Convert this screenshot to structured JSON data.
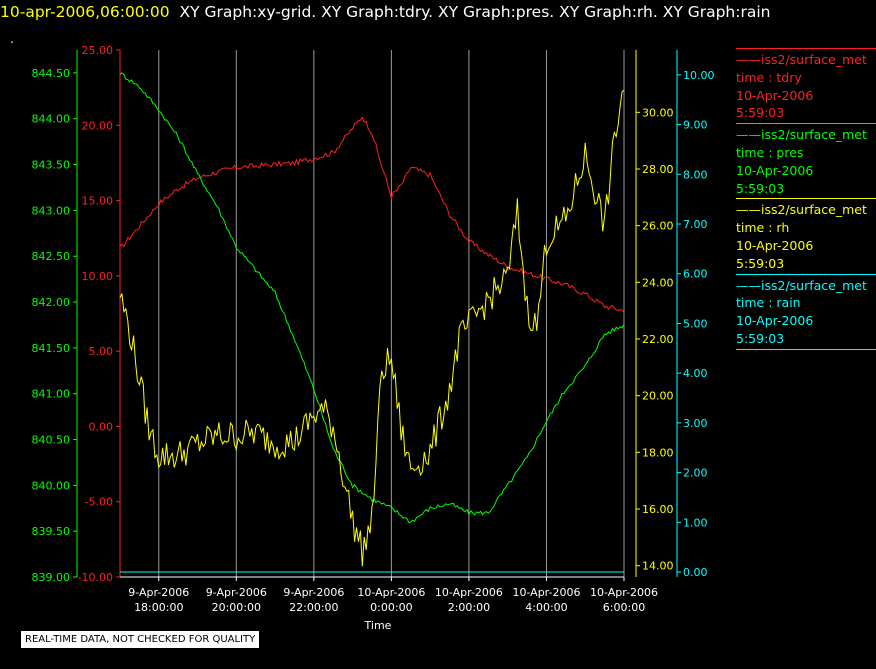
{
  "header": {
    "timestamp": "10-apr-2006,06:00:00",
    "graphs": "XY Graph:xy-grid.  XY Graph:tdry.  XY Graph:pres.  XY Graph:rh.  XY Graph:rain",
    "dot": "."
  },
  "disclaimer": "REAL-TIME DATA, NOT CHECKED FOR QUALITY",
  "legend": [
    {
      "source": "——iss2/surface_met",
      "var": "time : tdry",
      "date": "10-Apr-2006",
      "time": "5:59:03",
      "color": "#ff2020"
    },
    {
      "source": "——iss2/surface_met",
      "var": "time : pres",
      "date": "10-Apr-2006",
      "time": "5:59:03",
      "color": "#00ff00"
    },
    {
      "source": "——iss2/surface_met",
      "var": "time : rh",
      "date": "10-Apr-2006",
      "time": "5:59:03",
      "color": "#ffff00"
    },
    {
      "source": "——iss2/surface_met",
      "var": "time : rain",
      "date": "10-Apr-2006",
      "time": "5:59:03",
      "color": "#00ffff"
    }
  ],
  "chart_data": {
    "type": "line",
    "xlabel": "Time",
    "xlim": [
      "9-Apr-2006 17:00:00",
      "10-Apr-2006 06:00:00"
    ],
    "x_ticks": [
      {
        "date": "9-Apr-2006",
        "time": "18:00:00"
      },
      {
        "date": "9-Apr-2006",
        "time": "20:00:00"
      },
      {
        "date": "9-Apr-2006",
        "time": "22:00:00"
      },
      {
        "date": "10-Apr-2006",
        "time": "0:00:00"
      },
      {
        "date": "10-Apr-2006",
        "time": "2:00:00"
      },
      {
        "date": "10-Apr-2006",
        "time": "4:00:00"
      },
      {
        "date": "10-Apr-2006",
        "time": "6:00:00"
      }
    ],
    "grid": true,
    "axes": [
      {
        "id": "tdry",
        "color": "#ff2020",
        "ylim": [
          -10,
          25
        ],
        "ticks": [
          "-10.00",
          "-5.00",
          "0.00",
          "5.00",
          "10.00",
          "15.00",
          "20.00",
          "25.00"
        ]
      },
      {
        "id": "pres",
        "color": "#00ff00",
        "ylim": [
          839,
          844.75
        ],
        "ticks": [
          "839.00",
          "839.50",
          "840.00",
          "840.50",
          "841.00",
          "841.50",
          "842.00",
          "842.50",
          "843.00",
          "843.50",
          "844.00",
          "844.50"
        ]
      },
      {
        "id": "rh",
        "color": "#ffff00",
        "ylim": [
          13.6,
          32.2
        ],
        "ticks": [
          "14.00",
          "16.00",
          "18.00",
          "20.00",
          "22.00",
          "24.00",
          "26.00",
          "28.00",
          "30.00"
        ]
      },
      {
        "id": "rain",
        "color": "#00ffff",
        "ylim": [
          -0.1,
          10.5
        ],
        "ticks": [
          "0.00",
          "1.00",
          "2.00",
          "3.00",
          "4.00",
          "5.00",
          "6.00",
          "7.00",
          "8.00",
          "9.00",
          "10.00"
        ]
      }
    ],
    "series": [
      {
        "axis": "tdry",
        "color": "#ff2020",
        "noise": 0.18,
        "x": [
          "9-Apr-2006 17:00",
          "9-Apr-2006 17:30",
          "9-Apr-2006 18:00",
          "9-Apr-2006 18:30",
          "9-Apr-2006 19:00",
          "9-Apr-2006 19:30",
          "9-Apr-2006 20:00",
          "9-Apr-2006 20:30",
          "9-Apr-2006 21:00",
          "9-Apr-2006 21:30",
          "9-Apr-2006 22:00",
          "9-Apr-2006 22:30",
          "9-Apr-2006 23:00",
          "9-Apr-2006 23:15",
          "9-Apr-2006 23:30",
          "9-Apr-2006 23:45",
          "10-Apr-2006 00:00",
          "10-Apr-2006 00:15",
          "10-Apr-2006 00:30",
          "10-Apr-2006 01:00",
          "10-Apr-2006 01:30",
          "10-Apr-2006 02:00",
          "10-Apr-2006 02:30",
          "10-Apr-2006 03:00",
          "10-Apr-2006 03:30",
          "10-Apr-2006 04:00",
          "10-Apr-2006 04:30",
          "10-Apr-2006 05:00",
          "10-Apr-2006 05:30",
          "10-Apr-2006 06:00"
        ],
        "y": [
          11.8,
          13.3,
          14.8,
          15.8,
          16.5,
          16.9,
          17.2,
          17.3,
          17.4,
          17.5,
          17.8,
          18.2,
          19.8,
          20.6,
          19.5,
          17.3,
          15.3,
          16.0,
          17.2,
          16.7,
          14.1,
          12.3,
          11.4,
          10.6,
          10.2,
          9.8,
          9.4,
          8.8,
          8.0,
          7.7
        ]
      },
      {
        "axis": "pres",
        "color": "#00ff00",
        "noise": 0.025,
        "x": [
          "9-Apr-2006 17:00",
          "9-Apr-2006 17:30",
          "9-Apr-2006 18:00",
          "9-Apr-2006 18:30",
          "9-Apr-2006 19:00",
          "9-Apr-2006 19:30",
          "9-Apr-2006 20:00",
          "9-Apr-2006 20:30",
          "9-Apr-2006 21:00",
          "9-Apr-2006 21:30",
          "9-Apr-2006 22:00",
          "9-Apr-2006 22:30",
          "9-Apr-2006 23:00",
          "9-Apr-2006 23:30",
          "10-Apr-2006 00:00",
          "10-Apr-2006 00:30",
          "10-Apr-2006 01:00",
          "10-Apr-2006 01:30",
          "10-Apr-2006 02:00",
          "10-Apr-2006 02:30",
          "10-Apr-2006 03:00",
          "10-Apr-2006 03:30",
          "10-Apr-2006 04:00",
          "10-Apr-2006 04:30",
          "10-Apr-2006 05:00",
          "10-Apr-2006 05:30",
          "10-Apr-2006 06:00"
        ],
        "y": [
          844.5,
          844.35,
          844.1,
          843.8,
          843.4,
          843.05,
          842.6,
          842.35,
          842.1,
          841.6,
          841.05,
          840.4,
          840.0,
          839.85,
          839.75,
          839.6,
          839.75,
          839.8,
          839.7,
          839.7,
          840.0,
          840.3,
          840.7,
          841.05,
          841.3,
          841.65,
          841.75
        ]
      },
      {
        "axis": "rh",
        "color": "#ffff00",
        "noise": 0.55,
        "x": [
          "9-Apr-2006 17:00",
          "9-Apr-2006 17:15",
          "9-Apr-2006 17:30",
          "9-Apr-2006 17:45",
          "9-Apr-2006 18:00",
          "9-Apr-2006 18:30",
          "9-Apr-2006 19:00",
          "9-Apr-2006 19:30",
          "9-Apr-2006 20:00",
          "9-Apr-2006 20:30",
          "9-Apr-2006 21:00",
          "9-Apr-2006 21:30",
          "9-Apr-2006 22:00",
          "9-Apr-2006 22:15",
          "9-Apr-2006 22:30",
          "9-Apr-2006 23:00",
          "9-Apr-2006 23:15",
          "9-Apr-2006 23:30",
          "9-Apr-2006 23:45",
          "10-Apr-2006 00:00",
          "10-Apr-2006 00:15",
          "10-Apr-2006 00:30",
          "10-Apr-2006 01:00",
          "10-Apr-2006 01:30",
          "10-Apr-2006 01:45",
          "10-Apr-2006 02:00",
          "10-Apr-2006 02:30",
          "10-Apr-2006 03:00",
          "10-Apr-2006 03:15",
          "10-Apr-2006 03:30",
          "10-Apr-2006 03:45",
          "10-Apr-2006 04:00",
          "10-Apr-2006 04:30",
          "10-Apr-2006 05:00",
          "10-Apr-2006 05:30",
          "10-Apr-2006 05:45",
          "10-Apr-2006 06:00"
        ],
        "y": [
          23.6,
          22.3,
          20.6,
          18.8,
          17.9,
          17.9,
          18.3,
          18.6,
          18.6,
          18.7,
          18.3,
          18.4,
          19.3,
          19.5,
          18.9,
          15.6,
          14.5,
          15.6,
          20.9,
          21.3,
          18.8,
          17.4,
          18.0,
          20.2,
          22.0,
          22.5,
          23.4,
          24.2,
          26.5,
          23.1,
          22.4,
          25.5,
          26.2,
          28.5,
          26.0,
          29.0,
          31.0
        ]
      },
      {
        "axis": "rain",
        "color": "#00ffff",
        "noise": 0,
        "x": [
          "9-Apr-2006 17:00",
          "10-Apr-2006 06:00"
        ],
        "y": [
          0.0,
          0.0
        ]
      }
    ]
  }
}
